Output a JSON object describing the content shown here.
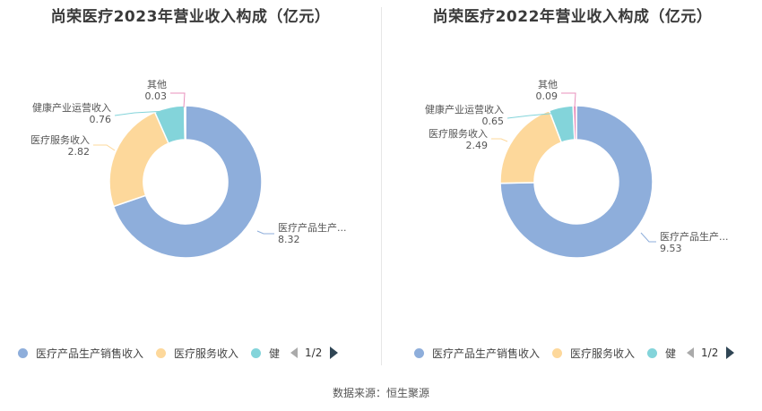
{
  "chart_data": [
    {
      "type": "pie",
      "title": "尚荣医疗2023年营业收入构成（亿元）",
      "slices": [
        {
          "name": "医疗产品生产销售收入",
          "label": "医疗产品生产...",
          "value": 8.32,
          "value_label": "8.32",
          "color": "#8eaedb"
        },
        {
          "name": "医疗服务收入",
          "label": "医疗服务收入",
          "value": 2.82,
          "value_label": "2.82",
          "color": "#fdd89b"
        },
        {
          "name": "健康产业运营收入",
          "label": "健康产业运营收入",
          "value": 0.76,
          "value_label": "0.76",
          "color": "#83d4da"
        },
        {
          "name": "其他",
          "label": "其他",
          "value": 0.03,
          "value_label": "0.03",
          "color": "#e891bd"
        }
      ],
      "legend": {
        "items": [
          {
            "label": "医疗产品生产销售收入",
            "color": "#8eaedb"
          },
          {
            "label": "医疗服务收入",
            "color": "#fdd89b"
          },
          {
            "label": "健",
            "color": "#83d4da"
          }
        ],
        "page": "1/2"
      }
    },
    {
      "type": "pie",
      "title": "尚荣医疗2022年营业收入构成（亿元）",
      "slices": [
        {
          "name": "医疗产品生产销售收入",
          "label": "医疗产品生产...",
          "value": 9.53,
          "value_label": "9.53",
          "color": "#8eaedb"
        },
        {
          "name": "医疗服务收入",
          "label": "医疗服务收入",
          "value": 2.49,
          "value_label": "2.49",
          "color": "#fdd89b"
        },
        {
          "name": "健康产业运营收入",
          "label": "健康产业运营收入",
          "value": 0.65,
          "value_label": "0.65",
          "color": "#83d4da"
        },
        {
          "name": "其他",
          "label": "其他",
          "value": 0.09,
          "value_label": "0.09",
          "color": "#e891bd"
        }
      ],
      "legend": {
        "items": [
          {
            "label": "医疗产品生产销售收入",
            "color": "#8eaedb"
          },
          {
            "label": "医疗服务收入",
            "color": "#fdd89b"
          },
          {
            "label": "健",
            "color": "#83d4da"
          }
        ],
        "page": "1/2"
      }
    }
  ],
  "source": "数据来源：恒生聚源"
}
